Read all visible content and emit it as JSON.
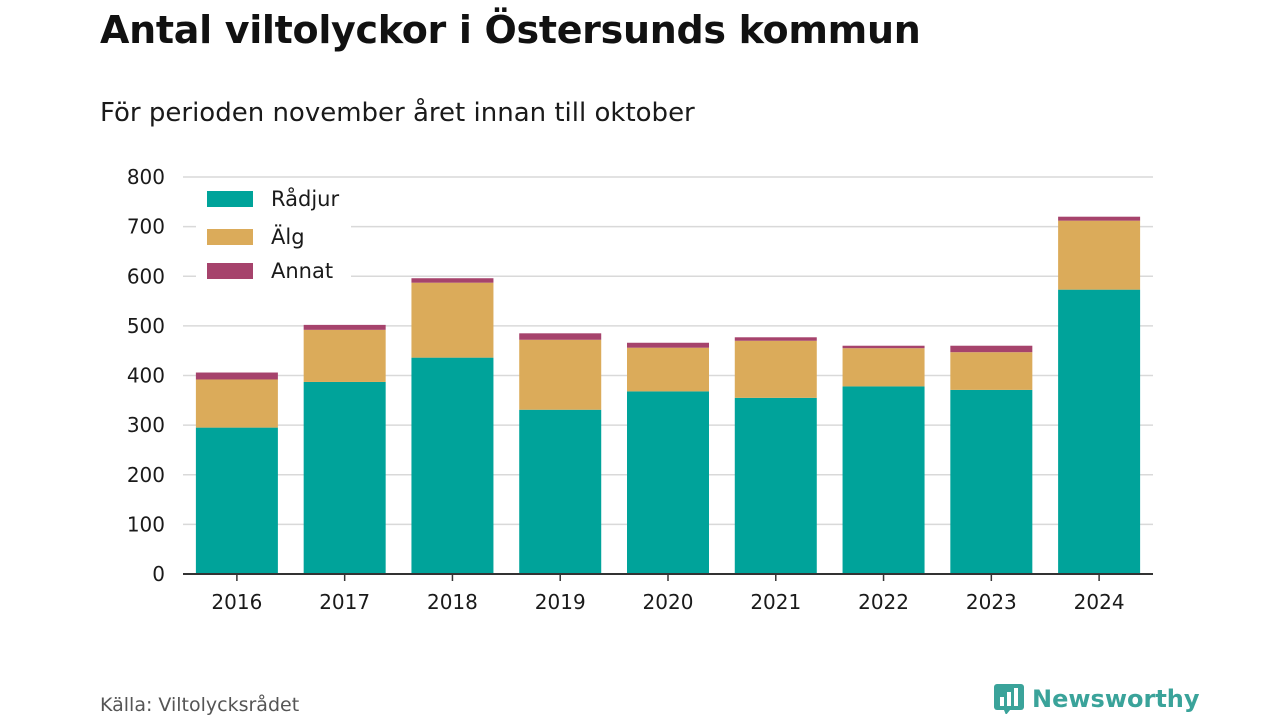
{
  "title": "Antal viltolyckor i Östersunds kommun",
  "subtitle": "För perioden november året innan till oktober",
  "source": "Källa: Viltolycksrådet",
  "brand": {
    "name": "Newsworthy",
    "icon": "newsworthy-logo-icon",
    "color": "#3aa39a"
  },
  "chart_data": {
    "type": "bar",
    "stacked": true,
    "categories": [
      "2016",
      "2017",
      "2018",
      "2019",
      "2020",
      "2021",
      "2022",
      "2023",
      "2024"
    ],
    "series": [
      {
        "name": "Rådjur",
        "color": "#00a39a",
        "values": [
          295,
          387,
          436,
          331,
          368,
          355,
          378,
          371,
          573
        ]
      },
      {
        "name": "Älg",
        "color": "#dbab5a",
        "values": [
          97,
          105,
          151,
          141,
          88,
          115,
          77,
          76,
          139
        ]
      },
      {
        "name": "Annat",
        "color": "#a6436c",
        "values": [
          14,
          10,
          9,
          13,
          10,
          7,
          5,
          13,
          8
        ]
      }
    ],
    "ylim": [
      0,
      800
    ],
    "yticks": [
      0,
      100,
      200,
      300,
      400,
      500,
      600,
      700,
      800
    ],
    "xlabel": "",
    "ylabel": "",
    "grid": true,
    "legend_position": "top-left"
  }
}
